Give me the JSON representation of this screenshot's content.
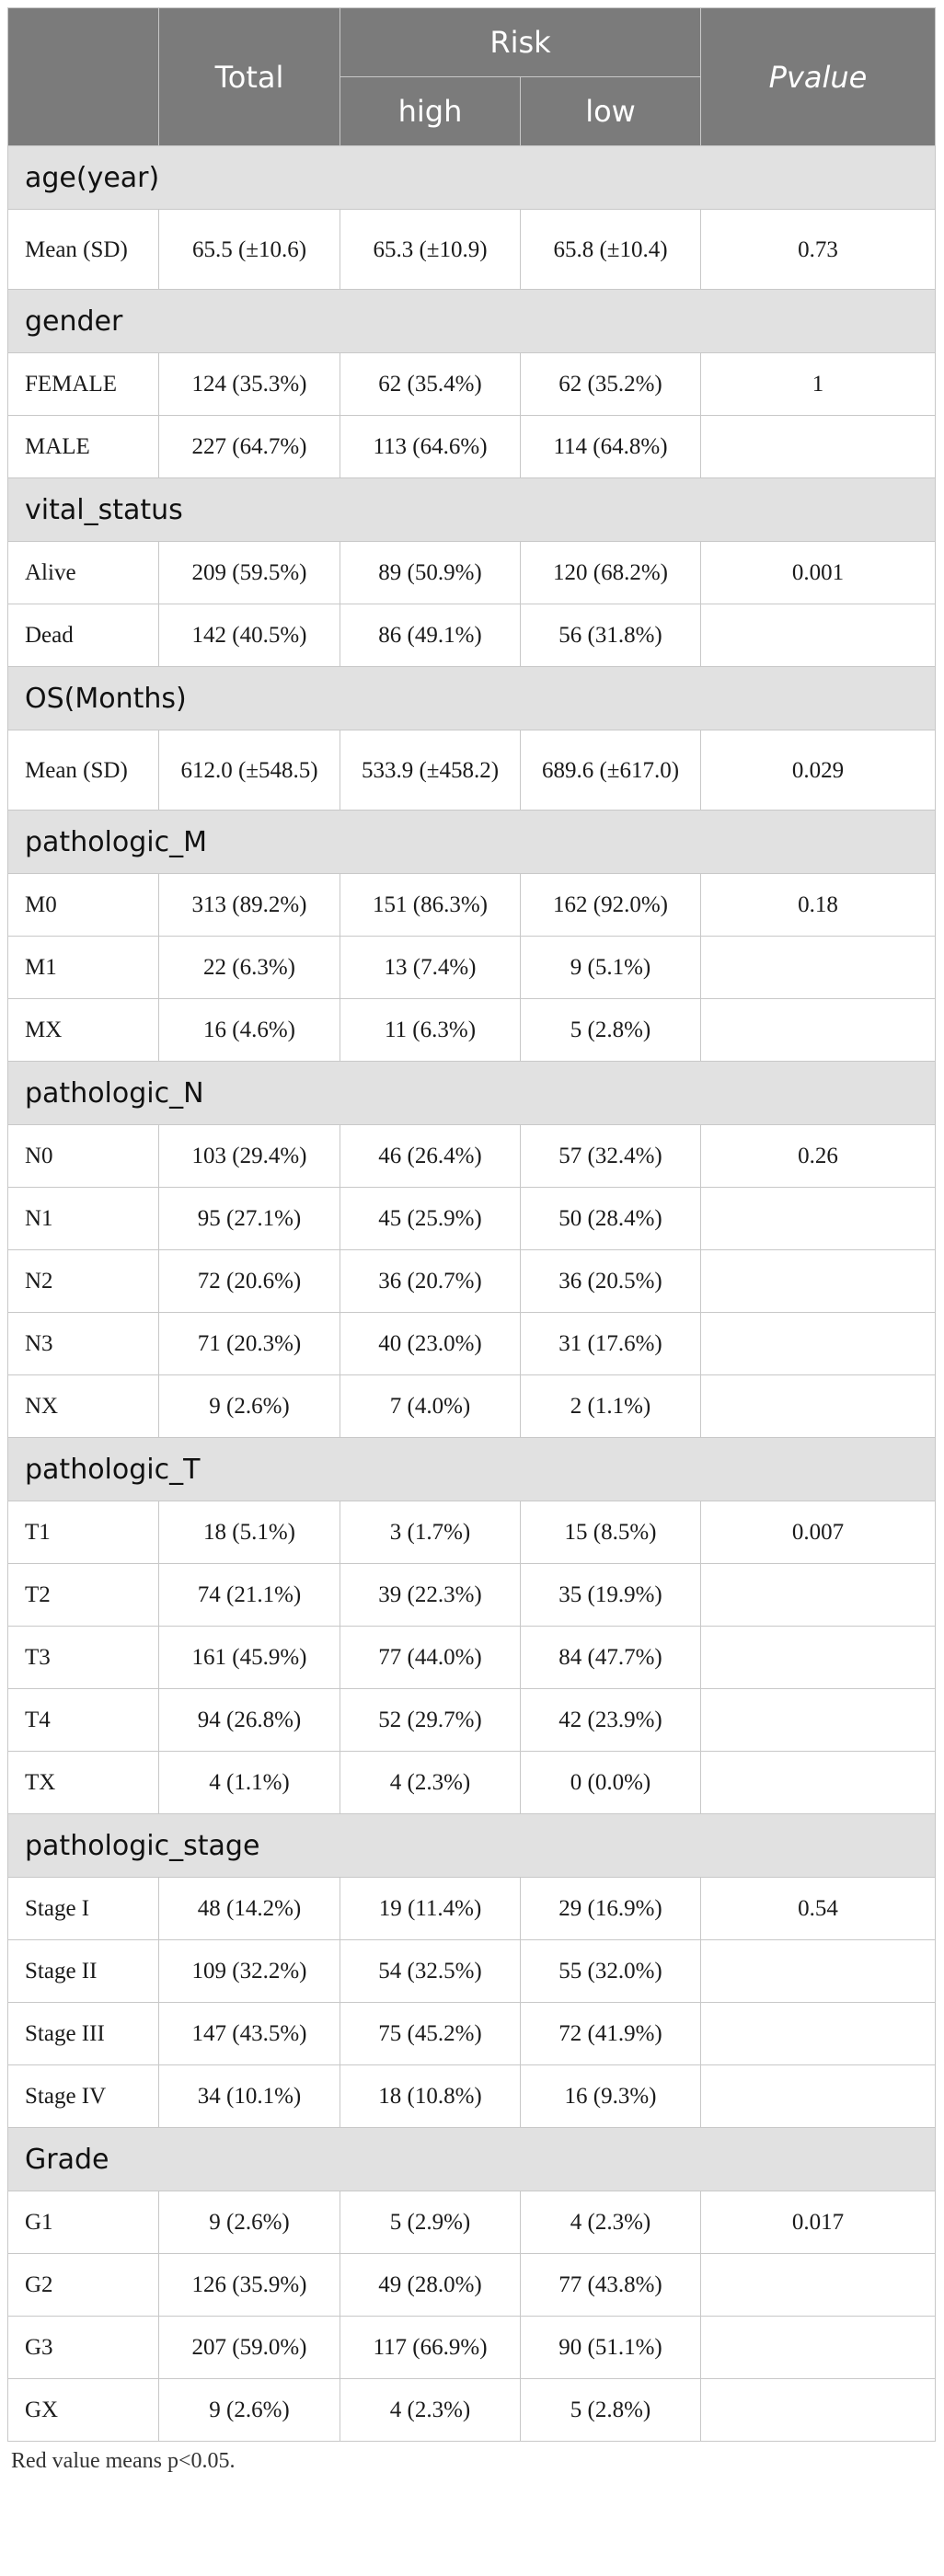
{
  "header": {
    "total": "Total",
    "risk": "Risk",
    "high": "high",
    "low": "low",
    "pvalue": "Pvalue"
  },
  "sections": [
    {
      "title": "age(year)",
      "rows": [
        {
          "label": "Mean (SD)",
          "total": "65.5 (±10.6)",
          "high": "65.3 (±10.9)",
          "low": "65.8 (±10.4)",
          "p": "0.73",
          "significant": false
        }
      ]
    },
    {
      "title": "gender",
      "rows": [
        {
          "label": "FEMALE",
          "total": "124 (35.3%)",
          "high": "62 (35.4%)",
          "low": "62 (35.2%)",
          "p": "1",
          "significant": false
        },
        {
          "label": "MALE",
          "total": "227 (64.7%)",
          "high": "113 (64.6%)",
          "low": "114 (64.8%)",
          "p": "",
          "significant": false
        }
      ]
    },
    {
      "title": "vital_status",
      "rows": [
        {
          "label": "Alive",
          "total": "209 (59.5%)",
          "high": "89 (50.9%)",
          "low": "120 (68.2%)",
          "p": "0.001",
          "significant": true
        },
        {
          "label": "Dead",
          "total": "142 (40.5%)",
          "high": "86 (49.1%)",
          "low": "56 (31.8%)",
          "p": "",
          "significant": false
        }
      ]
    },
    {
      "title": "OS(Months)",
      "rows": [
        {
          "label": "Mean (SD)",
          "total": "612.0 (±548.5)",
          "high": "533.9 (±458.2)",
          "low": "689.6 (±617.0)",
          "p": "0.029",
          "significant": true
        }
      ]
    },
    {
      "title": "pathologic_M",
      "rows": [
        {
          "label": "M0",
          "total": "313 (89.2%)",
          "high": "151 (86.3%)",
          "low": "162 (92.0%)",
          "p": "0.18",
          "significant": false
        },
        {
          "label": "M1",
          "total": "22 (6.3%)",
          "high": "13 (7.4%)",
          "low": "9 (5.1%)",
          "p": "",
          "significant": false
        },
        {
          "label": "MX",
          "total": "16 (4.6%)",
          "high": "11 (6.3%)",
          "low": "5 (2.8%)",
          "p": "",
          "significant": false
        }
      ]
    },
    {
      "title": "pathologic_N",
      "rows": [
        {
          "label": "N0",
          "total": "103 (29.4%)",
          "high": "46 (26.4%)",
          "low": "57 (32.4%)",
          "p": "0.26",
          "significant": false
        },
        {
          "label": "N1",
          "total": "95 (27.1%)",
          "high": "45 (25.9%)",
          "low": "50 (28.4%)",
          "p": "",
          "significant": false
        },
        {
          "label": "N2",
          "total": "72 (20.6%)",
          "high": "36 (20.7%)",
          "low": "36 (20.5%)",
          "p": "",
          "significant": false
        },
        {
          "label": "N3",
          "total": "71 (20.3%)",
          "high": "40 (23.0%)",
          "low": "31 (17.6%)",
          "p": "",
          "significant": false
        },
        {
          "label": "NX",
          "total": "9 (2.6%)",
          "high": "7 (4.0%)",
          "low": "2 (1.1%)",
          "p": "",
          "significant": false
        }
      ]
    },
    {
      "title": "pathologic_T",
      "rows": [
        {
          "label": "T1",
          "total": "18 (5.1%)",
          "high": "3 (1.7%)",
          "low": "15 (8.5%)",
          "p": "0.007",
          "significant": true
        },
        {
          "label": "T2",
          "total": "74 (21.1%)",
          "high": "39 (22.3%)",
          "low": "35 (19.9%)",
          "p": "",
          "significant": false
        },
        {
          "label": "T3",
          "total": "161 (45.9%)",
          "high": "77 (44.0%)",
          "low": "84 (47.7%)",
          "p": "",
          "significant": false
        },
        {
          "label": "T4",
          "total": "94 (26.8%)",
          "high": "52 (29.7%)",
          "low": "42 (23.9%)",
          "p": "",
          "significant": false
        },
        {
          "label": "TX",
          "total": "4 (1.1%)",
          "high": "4 (2.3%)",
          "low": "0 (0.0%)",
          "p": "",
          "significant": false
        }
      ]
    },
    {
      "title": "pathologic_stage",
      "rows": [
        {
          "label": "Stage I",
          "total": "48 (14.2%)",
          "high": "19 (11.4%)",
          "low": "29 (16.9%)",
          "p": "0.54",
          "significant": false
        },
        {
          "label": "Stage II",
          "total": "109 (32.2%)",
          "high": "54 (32.5%)",
          "low": "55 (32.0%)",
          "p": "",
          "significant": false
        },
        {
          "label": "Stage III",
          "total": "147 (43.5%)",
          "high": "75 (45.2%)",
          "low": "72 (41.9%)",
          "p": "",
          "significant": false
        },
        {
          "label": "Stage IV",
          "total": "34 (10.1%)",
          "high": "18 (10.8%)",
          "low": "16 (9.3%)",
          "p": "",
          "significant": false
        }
      ]
    },
    {
      "title": "Grade",
      "rows": [
        {
          "label": "G1",
          "total": "9 (2.6%)",
          "high": "5 (2.9%)",
          "low": "4 (2.3%)",
          "p": "0.017",
          "significant": true
        },
        {
          "label": "G2",
          "total": "126 (35.9%)",
          "high": "49 (28.0%)",
          "low": "77 (43.8%)",
          "p": "",
          "significant": false
        },
        {
          "label": "G3",
          "total": "207 (59.0%)",
          "high": "117 (66.9%)",
          "low": "90 (51.1%)",
          "p": "",
          "significant": false
        },
        {
          "label": "GX",
          "total": "9 (2.6%)",
          "high": "4 (2.3%)",
          "low": "5 (2.8%)",
          "p": "",
          "significant": false
        }
      ]
    }
  ],
  "footnote": "Red value means p<0.05.",
  "colors": {
    "header_bg": "#7b7b7b",
    "section_bg": "#e1e1e1",
    "significant_text": "#d0121b",
    "border": "#c8c8c8"
  }
}
